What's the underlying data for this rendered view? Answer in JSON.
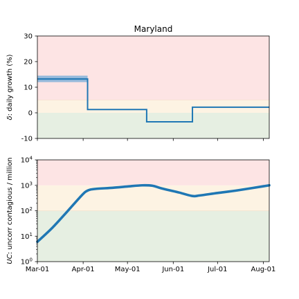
{
  "chart_data": [
    {
      "type": "line",
      "title": "Maryland",
      "ylabel_prefix": "δ",
      "ylabel_rest": ": daily growth (%)",
      "xlim": [
        "2020-03-01",
        "2020-08-05"
      ],
      "ylim": [
        -10,
        30
      ],
      "yticks": [
        -10,
        0,
        10,
        20,
        30
      ],
      "bands": [
        {
          "name": "decline",
          "from": -10,
          "to": 0,
          "color": "#e6efe2"
        },
        {
          "name": "moderate",
          "from": 0,
          "to": 5,
          "color": "#fdf3e3"
        },
        {
          "name": "high",
          "from": 5,
          "to": 30,
          "color": "#fde4e4"
        }
      ],
      "confidence_band": {
        "x_from": "2020-03-01",
        "x_to": "2020-04-04",
        "low": 12,
        "high": 14.5,
        "color": "#8ab4d9"
      },
      "series": [
        {
          "name": "daily growth",
          "color": "#1f77b4",
          "step": true,
          "points": [
            [
              "2020-03-01",
              13.2
            ],
            [
              "2020-04-04",
              13.2
            ],
            [
              "2020-04-04",
              1.3
            ],
            [
              "2020-05-14",
              1.3
            ],
            [
              "2020-05-14",
              -3.5
            ],
            [
              "2020-06-14",
              -3.5
            ],
            [
              "2020-06-14",
              2.2
            ],
            [
              "2020-08-05",
              2.2
            ]
          ]
        }
      ]
    },
    {
      "type": "line",
      "ylabel_prefix": "UC",
      "ylabel_rest": ": uncorr contagious / million",
      "yscale": "log",
      "ylim_exp": [
        0,
        4
      ],
      "ytick_exps": [
        "0",
        "1",
        "2",
        "3",
        "4"
      ],
      "ytick_base": "10",
      "xticks": [
        "Mar-01",
        "Apr-01",
        "May-01",
        "Jun-01",
        "Jul-01",
        "Aug-01"
      ],
      "xtick_dates": [
        "2020-03-01",
        "2020-04-01",
        "2020-05-01",
        "2020-06-01",
        "2020-07-01",
        "2020-08-01"
      ],
      "xlim": [
        "2020-03-01",
        "2020-08-05"
      ],
      "bands": [
        {
          "name": "low",
          "from": 1,
          "to": 100,
          "color": "#e6efe2"
        },
        {
          "name": "moderate",
          "from": 100,
          "to": 1000,
          "color": "#fdf3e3"
        },
        {
          "name": "high",
          "from": 1000,
          "to": 10000,
          "color": "#fde4e4"
        }
      ],
      "series": [
        {
          "name": "uncorrected contagious per million",
          "color": "#1f77b4",
          "points": [
            [
              "2020-03-01",
              6
            ],
            [
              "2020-03-11",
              21
            ],
            [
              "2020-03-21",
              90
            ],
            [
              "2020-03-31",
              400
            ],
            [
              "2020-04-04",
              620
            ],
            [
              "2020-04-09",
              720
            ],
            [
              "2020-04-21",
              800
            ],
            [
              "2020-05-01",
              900
            ],
            [
              "2020-05-11",
              1000
            ],
            [
              "2020-05-18",
              960
            ],
            [
              "2020-05-24",
              760
            ],
            [
              "2020-06-05",
              520
            ],
            [
              "2020-06-14",
              380
            ],
            [
              "2020-06-19",
              400
            ],
            [
              "2020-07-01",
              500
            ],
            [
              "2020-07-15",
              640
            ],
            [
              "2020-08-05",
              1000
            ]
          ]
        }
      ]
    }
  ]
}
